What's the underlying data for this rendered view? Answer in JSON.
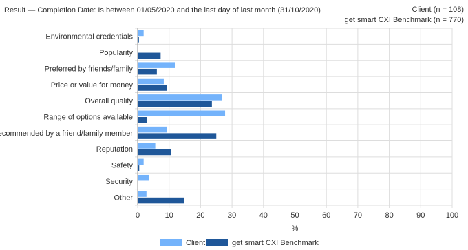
{
  "header": {
    "result_label": "Result",
    "separator": "—",
    "filter_text": "Completion Date: Is between 01/05/2020 and the last day of last month (31/10/2020)",
    "client_count": "Client (n = 108)",
    "benchmark_count": "get smart CXI Benchmark (n = 770)"
  },
  "chart_data": {
    "type": "bar",
    "orientation": "horizontal",
    "categories": [
      "Environmental credentials",
      "Popularity",
      "Preferred by friends/family",
      "Price or value for money",
      "Overall quality",
      "Range of options available",
      "Recommended by a friend/family member",
      "Reputation",
      "Safety",
      "Security",
      "Other"
    ],
    "series": [
      {
        "name": "Client",
        "color": "#74b3fb",
        "values": [
          1.9,
          0,
          12,
          8.3,
          26.9,
          27.8,
          9.3,
          5.6,
          1.9,
          3.7,
          2.8
        ]
      },
      {
        "name": "get smart CXI Benchmark",
        "color": "#1f5799",
        "values": [
          0.4,
          7.3,
          6.1,
          9.2,
          23.6,
          2.9,
          25.0,
          10.6,
          0.5,
          0,
          14.7
        ]
      }
    ],
    "xlabel": "%",
    "xlim": [
      0,
      100
    ],
    "xticks": [
      0,
      10,
      20,
      30,
      40,
      50,
      60,
      70,
      80,
      90,
      100
    ],
    "grid": true,
    "legend_position": "bottom"
  }
}
